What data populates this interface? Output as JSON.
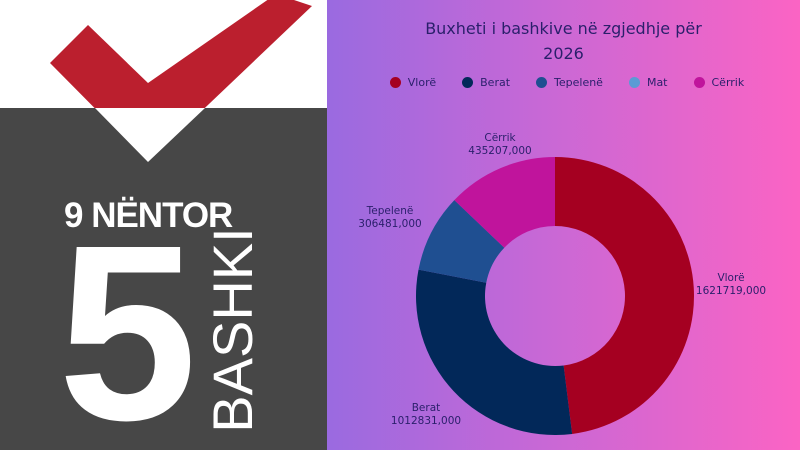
{
  "logo": {
    "date_text": "9 NËNTOR",
    "number_text": "5",
    "word_text": "BASHKI",
    "check_color": "#bb1f2e",
    "panel_color": "#474747"
  },
  "chart_data": {
    "type": "donut",
    "title": "Buxheti i bashkive në zgjedhje për 2026",
    "legend_position": "top",
    "categories": [
      "Vlorë",
      "Berat",
      "Tepelenë",
      "Mat",
      "Cërrik"
    ],
    "values": [
      1621719000,
      1012831000,
      306481000,
      null,
      435207000
    ],
    "value_labels": [
      "1621719,000",
      "1012831,000",
      "306481,000",
      "",
      "435207,000"
    ],
    "colors": [
      "#a50021",
      "#022859",
      "#1f4f91",
      "#5b9bd5",
      "#c0149c"
    ]
  }
}
